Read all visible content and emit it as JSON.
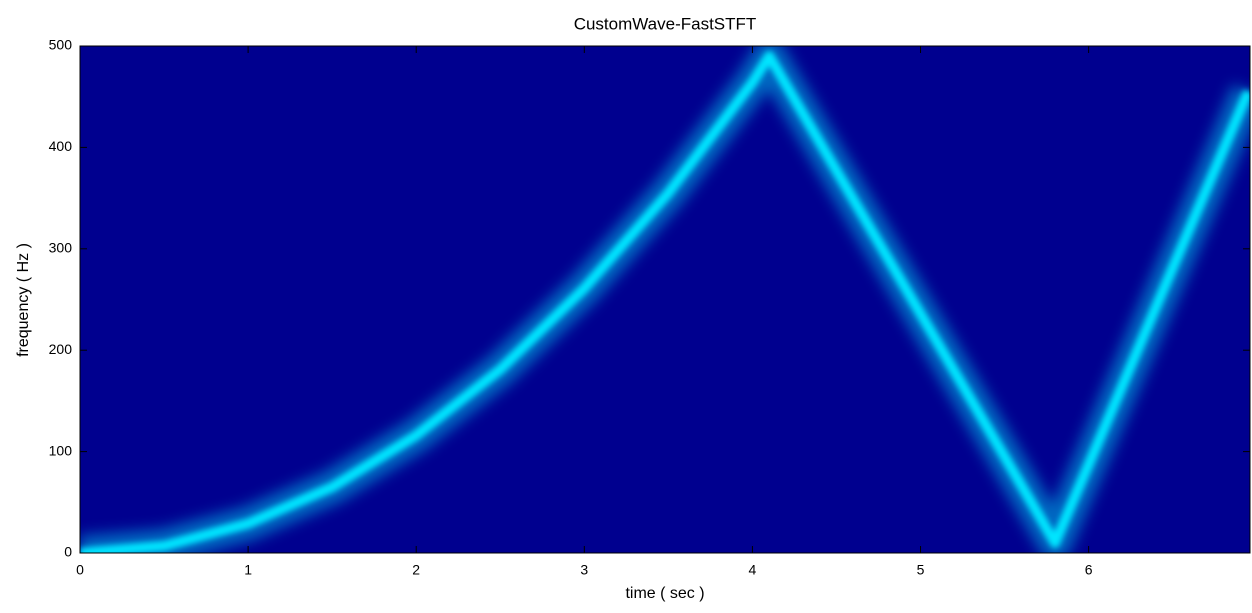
{
  "chart_data": {
    "type": "spectrogram",
    "title": "CustomWave-FastSTFT",
    "x_label": "time ( sec )",
    "y_label": "frequency ( Hz )",
    "x": [
      0,
      0.5,
      1,
      1.5,
      2,
      2.5,
      3,
      3.5,
      4,
      4.1,
      4.5,
      5,
      5.5,
      5.8,
      6,
      6.5,
      6.95
    ],
    "series": [
      {
        "color": "#00e5ff",
        "values": [
          0,
          7,
          29,
          65,
          116,
          181,
          261,
          355,
          464,
          490,
          377,
          236,
          95,
          10,
          87,
          281,
          455
        ]
      }
    ],
    "background": "#00008f",
    "xlim": [
      0,
      6.96
    ],
    "xticks": [
      0,
      1,
      2,
      3,
      4,
      5,
      6
    ],
    "ylim": [
      0,
      500
    ],
    "yticks": [
      0,
      100,
      200,
      300,
      400,
      500
    ]
  }
}
